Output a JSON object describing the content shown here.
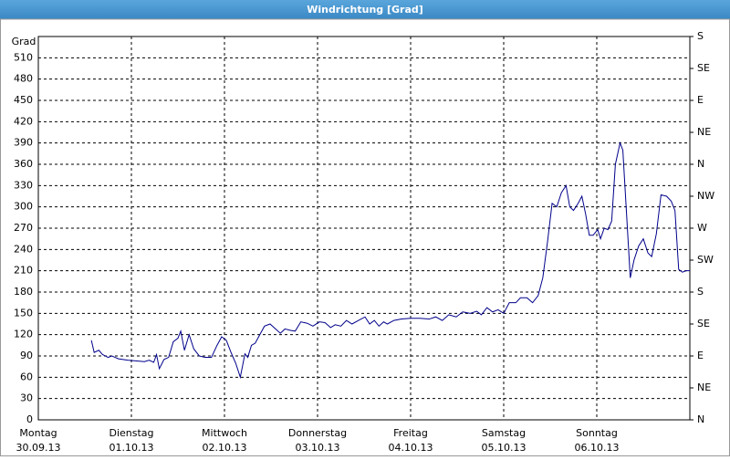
{
  "chart_data": {
    "type": "line",
    "title": "Windrichtung [Grad]",
    "y_label": "Grad",
    "xlim": [
      0,
      7
    ],
    "xticks": [
      {
        "value": 0,
        "label": "Montag"
      },
      {
        "value": 1,
        "label": "Dienstag"
      },
      {
        "value": 2,
        "label": "Mittwoch"
      },
      {
        "value": 3,
        "label": "Donnerstag"
      },
      {
        "value": 4,
        "label": "Freitag"
      },
      {
        "value": 5,
        "label": "Samstag"
      },
      {
        "value": 6,
        "label": "Sonntag"
      }
    ],
    "xtick_dates": [
      "30.09.13",
      "01.10.13",
      "02.10.13",
      "03.10.13",
      "04.10.13",
      "05.10.13",
      "06.10.13"
    ],
    "ylim": [
      0,
      540
    ],
    "yticks": [
      0,
      30,
      60,
      90,
      120,
      150,
      180,
      210,
      240,
      270,
      300,
      330,
      360,
      390,
      420,
      450,
      480,
      510
    ],
    "y2lim": [
      0,
      540
    ],
    "y2ticks": [
      {
        "value": 0,
        "label": "N"
      },
      {
        "value": 45,
        "label": "NE"
      },
      {
        "value": 90,
        "label": "E"
      },
      {
        "value": 135,
        "label": "SE"
      },
      {
        "value": 180,
        "label": "S"
      },
      {
        "value": 225,
        "label": "SW"
      },
      {
        "value": 270,
        "label": "W"
      },
      {
        "value": 315,
        "label": "NW"
      },
      {
        "value": 360,
        "label": "N"
      },
      {
        "value": 405,
        "label": "NE"
      },
      {
        "value": 450,
        "label": "E"
      },
      {
        "value": 495,
        "label": "SE"
      },
      {
        "value": 540,
        "label": "S"
      }
    ],
    "grid": true,
    "series": [
      {
        "color": "#00008b",
        "x": [
          0.57,
          0.6,
          0.65,
          0.69,
          0.75,
          0.79,
          0.86,
          0.96,
          1.06,
          1.14,
          1.19,
          1.24,
          1.27,
          1.3,
          1.35,
          1.4,
          1.45,
          1.5,
          1.53,
          1.57,
          1.62,
          1.67,
          1.73,
          1.79,
          1.86,
          1.92,
          1.97,
          2.02,
          2.07,
          2.12,
          2.17,
          2.22,
          2.25,
          2.29,
          2.33,
          2.38,
          2.43,
          2.49,
          2.55,
          2.6,
          2.65,
          2.71,
          2.76,
          2.82,
          2.89,
          2.95,
          3.02,
          3.08,
          3.14,
          3.19,
          3.25,
          3.31,
          3.37,
          3.44,
          3.51,
          3.56,
          3.61,
          3.66,
          3.71,
          3.75,
          3.82,
          3.9,
          4.0,
          4.1,
          4.2,
          4.27,
          4.34,
          4.41,
          4.49,
          4.56,
          4.64,
          4.71,
          4.76,
          4.82,
          4.88,
          4.94,
          5.0,
          5.06,
          5.13,
          5.18,
          5.25,
          5.31,
          5.37,
          5.42,
          5.47,
          5.52,
          5.57,
          5.62,
          5.67,
          5.71,
          5.75,
          5.8,
          5.84,
          5.88,
          5.92,
          5.96,
          6.01,
          6.04,
          6.08,
          6.12,
          6.16,
          6.2,
          6.25,
          6.28,
          6.32,
          6.36,
          6.4,
          6.45,
          6.5,
          6.55,
          6.59,
          6.64,
          6.69,
          6.75,
          6.8,
          6.84,
          6.88,
          6.92,
          6.96,
          7.0
        ],
        "values": [
          112,
          95,
          98,
          92,
          88,
          90,
          86,
          84,
          83,
          82,
          84,
          81,
          92,
          72,
          85,
          88,
          110,
          115,
          125,
          98,
          120,
          100,
          90,
          88,
          88,
          105,
          117,
          112,
          95,
          80,
          60,
          93,
          88,
          105,
          108,
          120,
          132,
          135,
          128,
          122,
          128,
          126,
          125,
          138,
          136,
          132,
          138,
          137,
          130,
          134,
          132,
          140,
          135,
          140,
          145,
          135,
          140,
          132,
          138,
          135,
          140,
          142,
          143,
          143,
          142,
          145,
          140,
          148,
          145,
          152,
          150,
          153,
          148,
          158,
          152,
          155,
          150,
          165,
          165,
          172,
          172,
          165,
          175,
          200,
          250,
          305,
          300,
          320,
          330,
          300,
          295,
          305,
          315,
          290,
          260,
          260,
          268,
          255,
          270,
          268,
          280,
          360,
          390,
          380,
          290,
          200,
          225,
          245,
          255,
          235,
          230,
          262,
          317,
          315,
          308,
          295,
          212,
          208,
          210,
          210
        ]
      }
    ]
  }
}
